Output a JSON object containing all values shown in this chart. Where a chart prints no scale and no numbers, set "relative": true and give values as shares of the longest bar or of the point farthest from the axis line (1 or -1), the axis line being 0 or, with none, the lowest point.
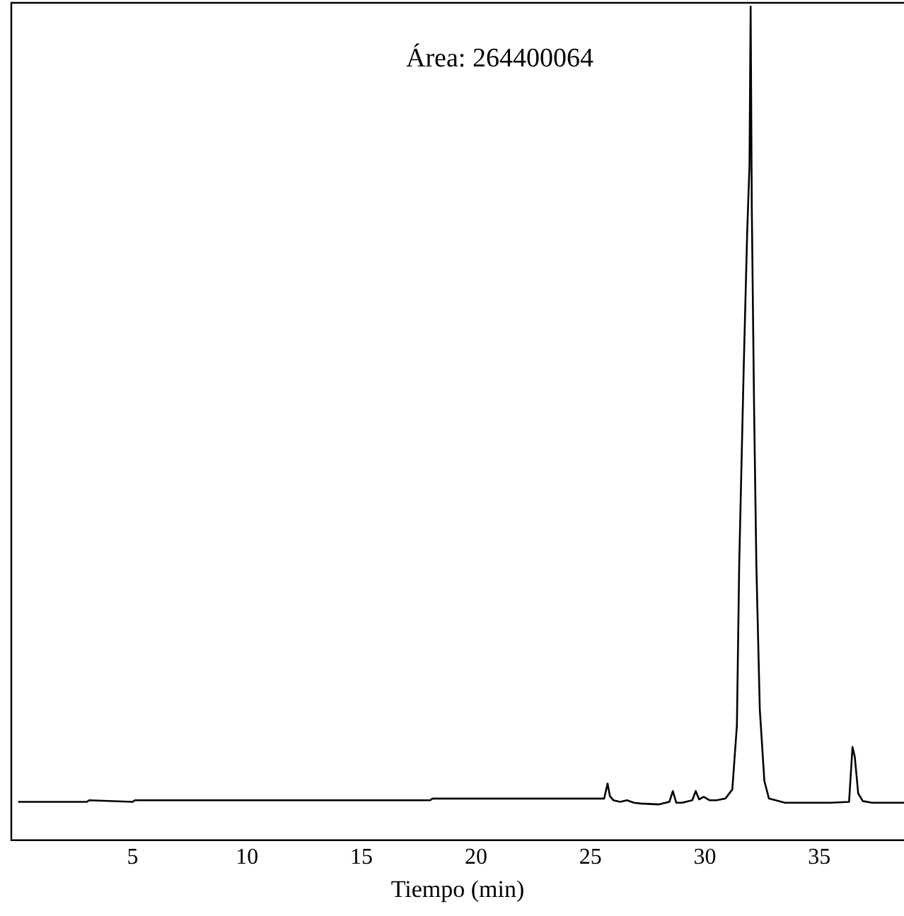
{
  "chart_data": {
    "type": "line",
    "relative": true,
    "xlabel": "Tiempo (min)",
    "annotations": [
      "Área: 264400064"
    ],
    "color": "#000000",
    "xlim": [
      -0.3,
      38.7
    ],
    "xticks": [
      5,
      10,
      15,
      20,
      25,
      30,
      35
    ],
    "grid": false,
    "legend": false,
    "marker": "none",
    "x": [
      0,
      3,
      3.1,
      5,
      5.1,
      18,
      18.1,
      25.6,
      25.75,
      25.85,
      26.0,
      26.3,
      26.6,
      26.9,
      27.2,
      28.0,
      28.45,
      28.6,
      28.75,
      29.0,
      29.45,
      29.6,
      29.75,
      29.95,
      30.2,
      30.5,
      30.9,
      31.2,
      31.4,
      31.5,
      31.7,
      31.85,
      31.95,
      32.0,
      32.05,
      32.15,
      32.25,
      32.4,
      32.6,
      32.8,
      33.5,
      35.5,
      36.3,
      36.45,
      36.55,
      36.7,
      36.9,
      37.3,
      38.7
    ],
    "values": [
      0.046,
      0.046,
      0.048,
      0.046,
      0.048,
      0.048,
      0.05,
      0.05,
      0.068,
      0.053,
      0.048,
      0.046,
      0.048,
      0.045,
      0.044,
      0.043,
      0.046,
      0.059,
      0.045,
      0.045,
      0.048,
      0.059,
      0.049,
      0.052,
      0.048,
      0.048,
      0.05,
      0.061,
      0.138,
      0.33,
      0.57,
      0.73,
      0.81,
      1.0,
      0.76,
      0.52,
      0.33,
      0.157,
      0.071,
      0.05,
      0.045,
      0.045,
      0.046,
      0.112,
      0.1,
      0.056,
      0.047,
      0.045,
      0.045
    ]
  }
}
